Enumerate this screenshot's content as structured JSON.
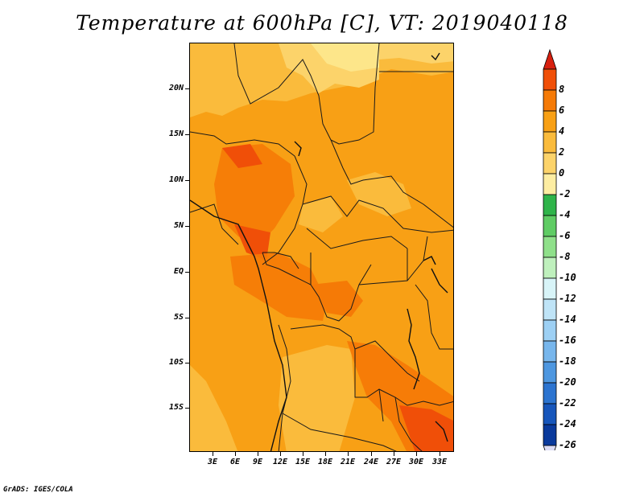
{
  "title": "Temperature at 600hPa [C], VT: 2019040118",
  "credit": "GrADS: IGES/COLA",
  "lat_ticks": [
    "20N",
    "15N",
    "10N",
    "5N",
    "EQ",
    "5S",
    "10S",
    "15S"
  ],
  "lon_ticks": [
    "3E",
    "6E",
    "9E",
    "12E",
    "15E",
    "18E",
    "21E",
    "24E",
    "27E",
    "30E",
    "33E"
  ],
  "colorbar": {
    "labels": [
      "8",
      "6",
      "4",
      "2",
      "0",
      "-2",
      "-4",
      "-6",
      "-8",
      "-10",
      "-12",
      "-14",
      "-16",
      "-18",
      "-20",
      "-22",
      "-24",
      "-26"
    ],
    "colors": [
      "#d7200f",
      "#f04f08",
      "#f57a06",
      "#f8a015",
      "#fabb3c",
      "#fcd36a",
      "#fdeda2",
      "#2fb44a",
      "#5fcc64",
      "#8fe08a",
      "#bff0bd",
      "#d8f4f8",
      "#bfe4f7",
      "#9dd0f4",
      "#77b6ec",
      "#4e97e0",
      "#2c74d0",
      "#1756bb",
      "#0a3a9c",
      "#060f6f"
    ],
    "under_color": "#dcdcf5",
    "over_color": "#d7200f"
  }
}
